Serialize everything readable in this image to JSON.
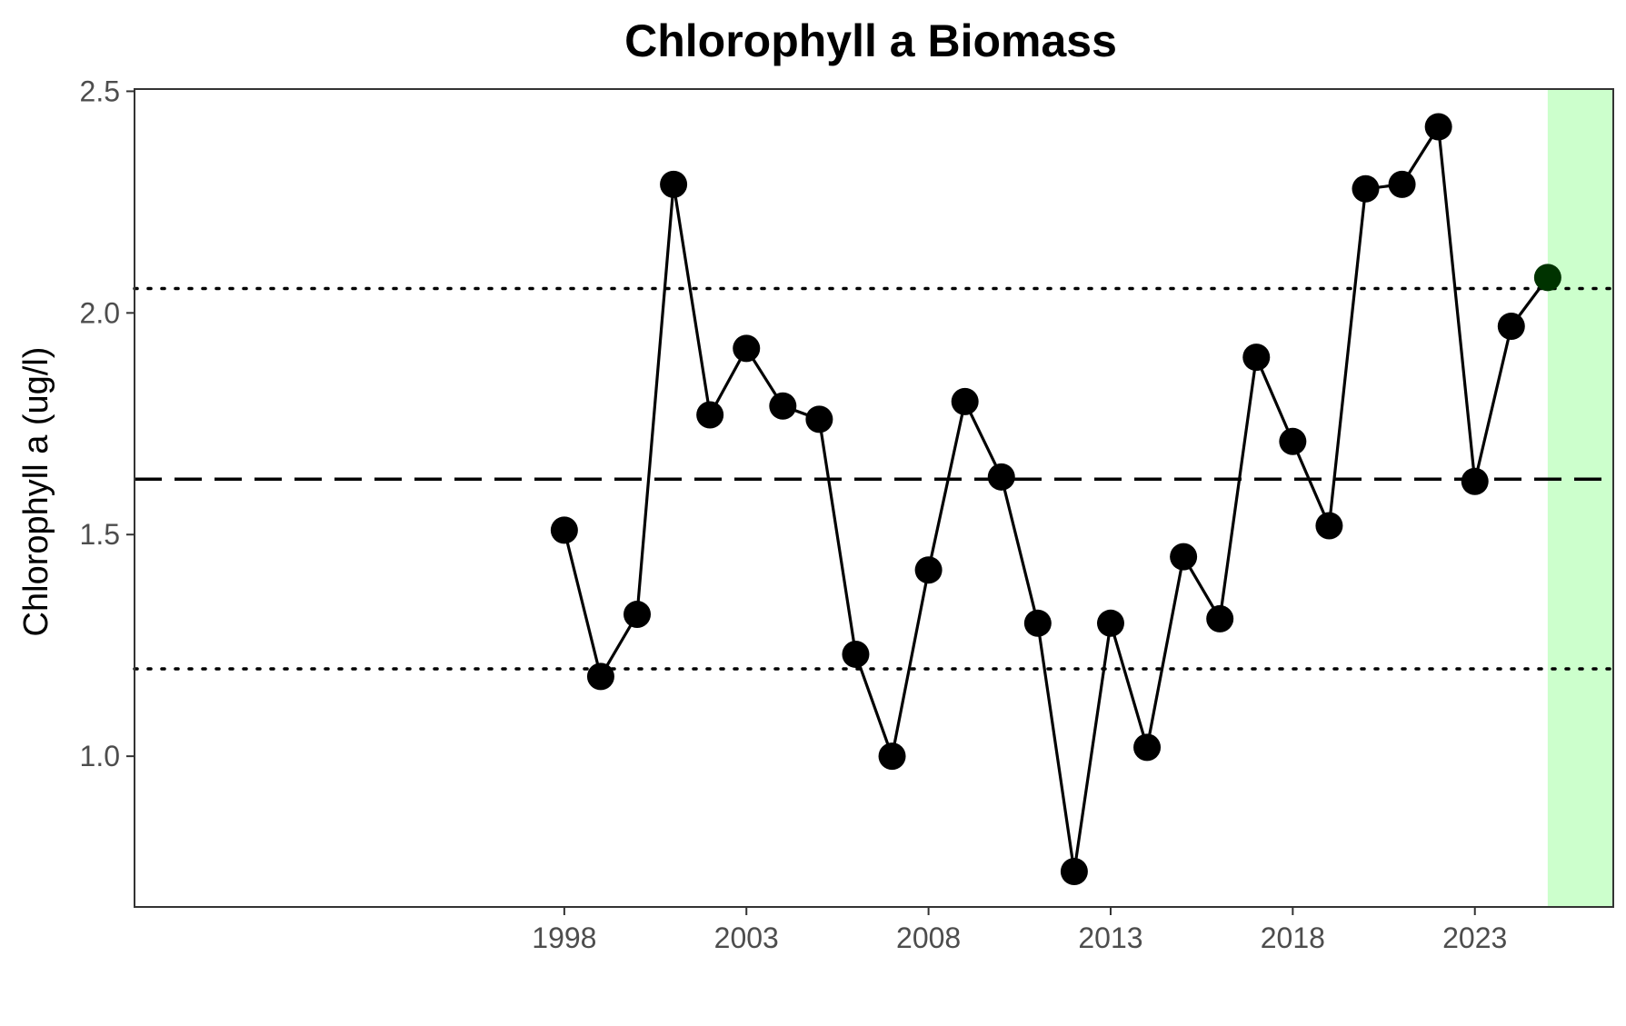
{
  "chart_data": {
    "type": "line",
    "title": "Chlorophyll a Biomass",
    "xlabel": "",
    "ylabel": "Chlorophyll a (ug/l)",
    "xlim": [
      1986.2,
      2026.8
    ],
    "ylim": [
      0.66,
      2.505
    ],
    "x_ticks": [
      1998,
      2003,
      2008,
      2013,
      2018,
      2023
    ],
    "y_ticks": [
      1.0,
      1.5,
      2.0,
      2.5
    ],
    "y_tick_labels": [
      "1.0",
      "1.5",
      "2.0",
      "2.5"
    ],
    "grid": false,
    "reference_lines": {
      "mean": 1.625,
      "upper": 2.055,
      "lower": 1.197
    },
    "highlight_range": [
      2025,
      2026.8
    ],
    "series": [
      {
        "x": [
          1998,
          1999,
          2000,
          2001,
          2002,
          2003,
          2004,
          2005,
          2006,
          2007,
          2008,
          2009,
          2010,
          2011,
          2012,
          2013,
          2014,
          2015,
          2016,
          2017,
          2018,
          2019,
          2020,
          2021,
          2022,
          2023,
          2024,
          2025
        ],
        "values": [
          1.51,
          1.18,
          1.32,
          2.29,
          1.77,
          1.92,
          1.79,
          1.76,
          1.23,
          1.0,
          1.42,
          1.8,
          1.63,
          1.3,
          0.74,
          1.3,
          1.02,
          1.45,
          1.31,
          1.9,
          1.71,
          1.52,
          2.28,
          2.29,
          2.42,
          1.62,
          1.97,
          2.08
        ]
      }
    ],
    "colors": {
      "line": "#000000",
      "point": "#000000",
      "last_point": "#003300",
      "highlight": "#ccffcc",
      "panel_border": "#333333",
      "tick_text": "#4d4d4d"
    }
  }
}
